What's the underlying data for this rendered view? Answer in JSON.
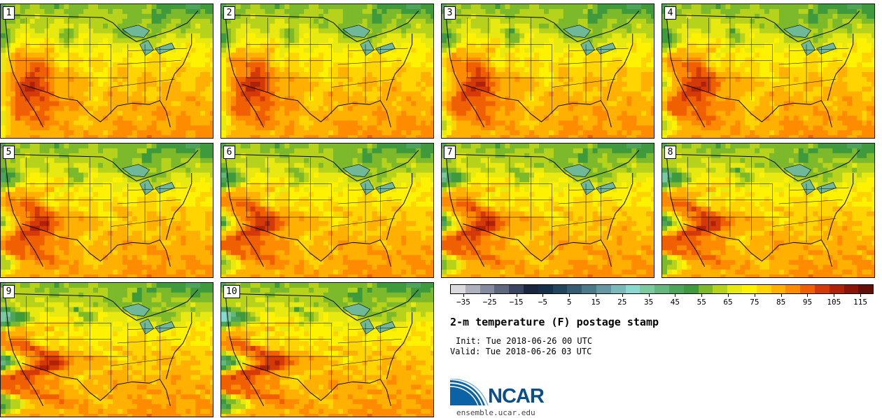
{
  "title": "2-m temperature (F) postage stamp",
  "init_label": "Init: Tue 2018-06-26 00 UTC",
  "valid_label": "Valid: Tue 2018-06-26 03 UTC",
  "logo_text": "NCAR",
  "site_url": "ensemble.ucar.edu",
  "members": [
    "1",
    "2",
    "3",
    "4",
    "5",
    "6",
    "7",
    "8",
    "9",
    "10"
  ],
  "colorbar": {
    "ticks": [
      "−35",
      "−25",
      "−15",
      "−5",
      "5",
      "15",
      "25",
      "35",
      "45",
      "55",
      "65",
      "75",
      "85",
      "95",
      "105",
      "115"
    ],
    "min": -40,
    "max": 120,
    "colors": [
      "#d9d9de",
      "#aeb0bb",
      "#868a9e",
      "#5f6680",
      "#3a4563",
      "#1a2540",
      "#15304d",
      "#22445c",
      "#355c70",
      "#4b7988",
      "#6597a3",
      "#79b8bb",
      "#8ad9d0",
      "#7cc9a0",
      "#64b87e",
      "#4ea45b",
      "#3f9a3d",
      "#7cb92b",
      "#b7d21a",
      "#e8e910",
      "#fff200",
      "#ffd400",
      "#ffb000",
      "#ff8c00",
      "#f06000",
      "#d43a08",
      "#b02208",
      "#8a1408",
      "#631008"
    ]
  },
  "map_colors": {
    "border": "#000000",
    "lake": "#6fb89a"
  }
}
